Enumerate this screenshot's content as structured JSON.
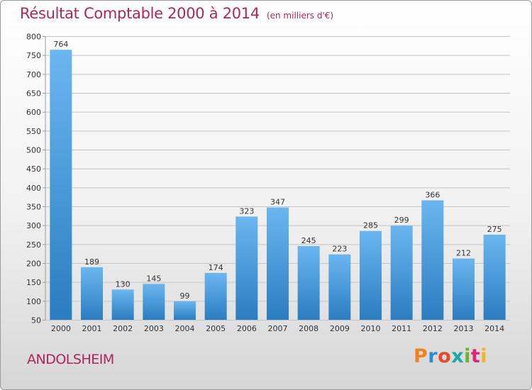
{
  "header": {
    "title": "Résultat Comptable 2000 à 2014",
    "subtitle": "(en milliers d'€)"
  },
  "footer": {
    "commune": "ANDOLSHEIM",
    "logo_text": "Proxiti",
    "logo_colors": [
      "#f0831f",
      "#2d8cd1",
      "#e94b2a",
      "#1aa8a8",
      "#6ab42d",
      "#e0267a",
      "#f2b41c"
    ]
  },
  "colors": {
    "bar_top": "#6bb6f0",
    "bar_bottom": "#2a7dc1",
    "text": "#333333",
    "accent": "#b0265a"
  },
  "chart_data": {
    "type": "bar",
    "categories": [
      "2000",
      "2001",
      "2002",
      "2003",
      "2004",
      "2005",
      "2006",
      "2007",
      "2008",
      "2009",
      "2010",
      "2011",
      "2012",
      "2013",
      "2014"
    ],
    "values": [
      764,
      189,
      130,
      145,
      99,
      174,
      323,
      347,
      245,
      223,
      285,
      299,
      366,
      212,
      275
    ],
    "xlabel": "",
    "ylabel": "",
    "ylim": [
      50,
      800
    ],
    "yticks": [
      50,
      100,
      150,
      200,
      250,
      300,
      350,
      400,
      450,
      500,
      550,
      600,
      650,
      700,
      750,
      800
    ],
    "grid": true
  }
}
